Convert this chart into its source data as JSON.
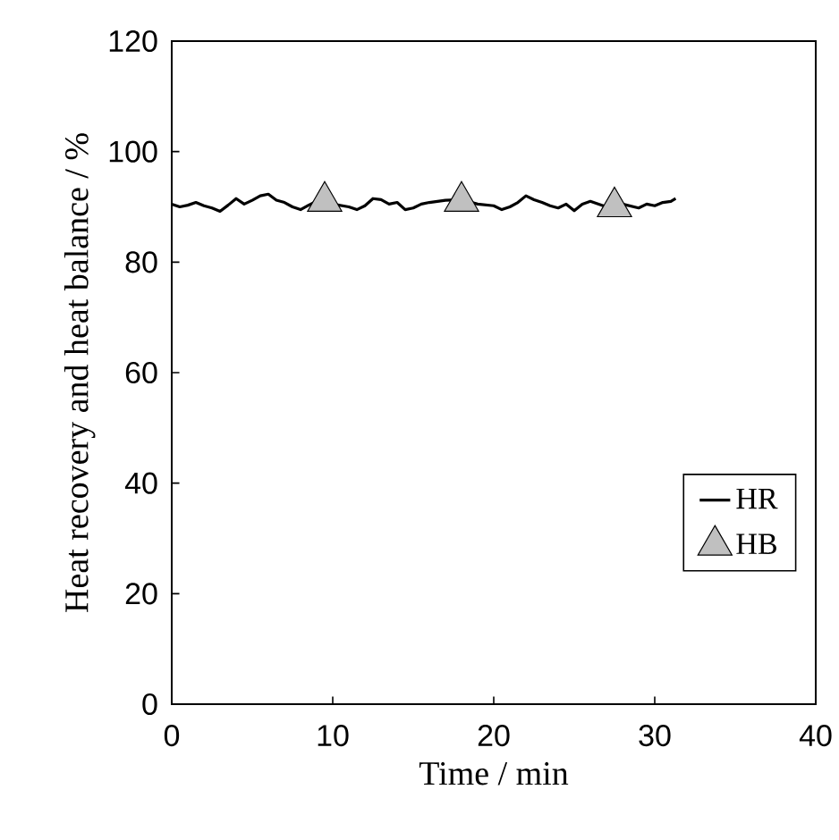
{
  "chart_data": {
    "type": "line",
    "xlabel": "Time / min",
    "ylabel": "Heat recovery and heat balance / %",
    "xlim": [
      0,
      40
    ],
    "ylim": [
      0,
      120
    ],
    "xticks": [
      0,
      10,
      20,
      30,
      40
    ],
    "yticks": [
      0,
      20,
      40,
      60,
      80,
      100,
      120
    ],
    "grid": false,
    "legend": "bottom right",
    "series": [
      {
        "name": "HR",
        "type": "line",
        "color": "#000000",
        "marker": "none",
        "x": [
          0,
          0.5,
          1,
          1.5,
          2,
          2.5,
          3,
          3.5,
          4,
          4.5,
          5,
          5.5,
          6,
          6.5,
          7,
          7.5,
          8,
          8.5,
          9,
          10,
          11,
          11.5,
          12,
          12.5,
          13,
          13.5,
          14,
          14.5,
          15,
          15.5,
          16,
          17,
          18,
          19,
          20,
          20.5,
          21,
          21.5,
          22,
          22.5,
          23,
          23.5,
          24,
          24.5,
          25,
          25.5,
          26,
          27,
          28,
          29,
          29.5,
          30,
          30.5,
          31,
          31.3
        ],
        "values": [
          90.5,
          90,
          90.3,
          90.8,
          90.2,
          89.8,
          89.2,
          90.3,
          91.5,
          90.5,
          91.2,
          92,
          92.3,
          91.2,
          90.8,
          90,
          89.5,
          90.3,
          91,
          90.5,
          90,
          89.5,
          90.2,
          91.5,
          91.3,
          90.5,
          90.8,
          89.5,
          89.8,
          90.5,
          90.8,
          91.2,
          91.3,
          90.5,
          90.2,
          89.5,
          90,
          90.8,
          92,
          91.3,
          90.8,
          90.2,
          89.8,
          90.5,
          89.3,
          90.5,
          91,
          90,
          90.5,
          89.8,
          90.5,
          90.2,
          90.8,
          91,
          91.5
        ]
      },
      {
        "name": "HB",
        "type": "scatter",
        "color": "#c0c0c0",
        "marker": "triangle",
        "x": [
          9.5,
          18,
          27.5
        ],
        "values": [
          91,
          91,
          90
        ]
      }
    ]
  }
}
